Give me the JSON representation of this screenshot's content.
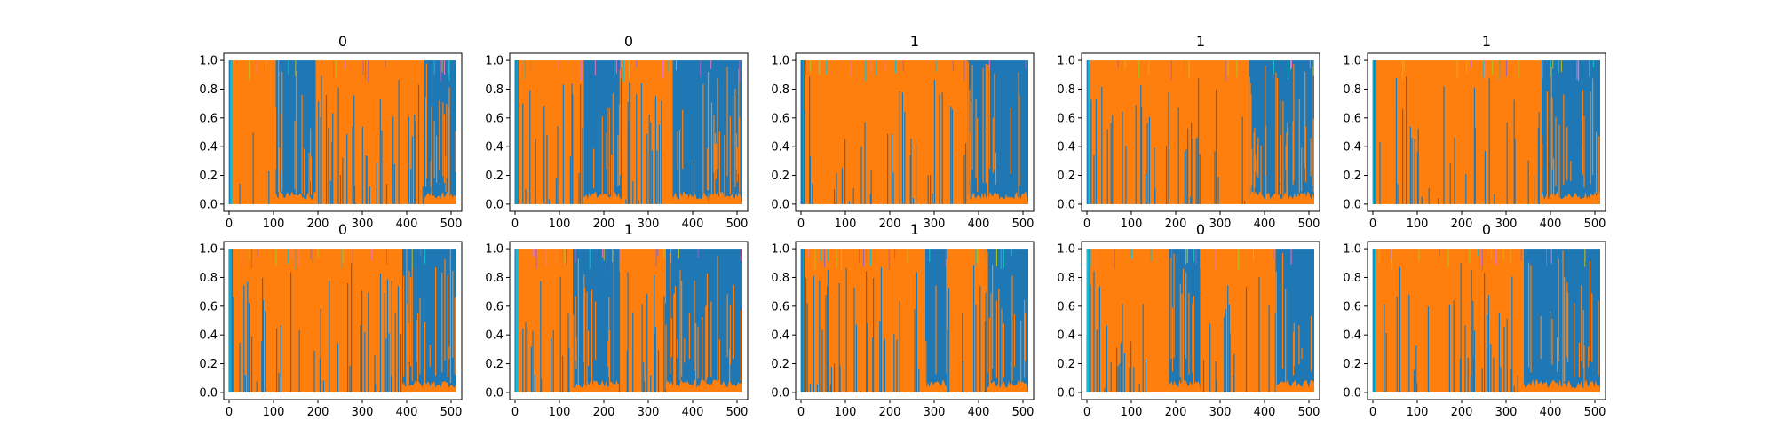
{
  "figure": {
    "background": "#ffffff",
    "layout": "2 rows x 5 columns"
  },
  "chart_data": [
    {
      "type": "area",
      "title": "0",
      "xlim": [
        -12,
        524
      ],
      "ylim": [
        -0.05,
        1.05
      ],
      "xticks": [
        "0",
        "100",
        "200",
        "300",
        "400",
        "500"
      ],
      "yticks": [
        "0.0",
        "0.2",
        "0.4",
        "0.6",
        "0.8",
        "1.0"
      ],
      "series": [
        {
          "color": "#1f77b4",
          "values": [
            0,
            0,
            0,
            0,
            0,
            0,
            0,
            1,
            1,
            1,
            1,
            1,
            0,
            0,
            0,
            0,
            0,
            0,
            0,
            0,
            0,
            0,
            0,
            1,
            1,
            1,
            1,
            1
          ]
        },
        {
          "color": "#ff7f0e",
          "values": [
            1,
            1,
            1,
            1,
            1,
            1,
            1,
            0,
            0,
            0,
            0,
            0,
            1,
            1,
            1,
            1,
            1,
            1,
            1,
            1,
            1,
            1,
            1,
            0,
            0,
            0,
            0,
            0
          ]
        }
      ],
      "segments": [
        [
          0,
          105,
          "o"
        ],
        [
          105,
          195,
          "b"
        ],
        [
          195,
          440,
          "o"
        ],
        [
          440,
          512,
          "b"
        ]
      ]
    },
    {
      "type": "area",
      "title": "0",
      "xlim": [
        -12,
        524
      ],
      "ylim": [
        -0.05,
        1.05
      ],
      "xticks": [
        "0",
        "100",
        "200",
        "300",
        "400",
        "500"
      ],
      "yticks": [
        "0.0",
        "0.2",
        "0.4",
        "0.6",
        "0.8",
        "1.0"
      ],
      "segments": [
        [
          0,
          155,
          "o"
        ],
        [
          155,
          240,
          "b"
        ],
        [
          240,
          355,
          "o"
        ],
        [
          355,
          435,
          "b"
        ],
        [
          435,
          512,
          "b"
        ]
      ]
    },
    {
      "type": "area",
      "title": "1",
      "xlim": [
        -12,
        524
      ],
      "ylim": [
        -0.05,
        1.05
      ],
      "xticks": [
        "0",
        "100",
        "200",
        "300",
        "400",
        "500"
      ],
      "yticks": [
        "0.0",
        "0.2",
        "0.4",
        "0.6",
        "0.8",
        "1.0"
      ],
      "segments": [
        [
          0,
          375,
          "o"
        ],
        [
          375,
          512,
          "b"
        ]
      ]
    },
    {
      "type": "area",
      "title": "1",
      "xlim": [
        -12,
        524
      ],
      "ylim": [
        -0.05,
        1.05
      ],
      "xticks": [
        "0",
        "100",
        "200",
        "300",
        "400",
        "500"
      ],
      "yticks": [
        "0.0",
        "0.2",
        "0.4",
        "0.6",
        "0.8",
        "1.0"
      ],
      "segments": [
        [
          0,
          365,
          "o"
        ],
        [
          365,
          512,
          "b"
        ]
      ]
    },
    {
      "type": "area",
      "title": "1",
      "xlim": [
        -12,
        524
      ],
      "ylim": [
        -0.05,
        1.05
      ],
      "xticks": [
        "0",
        "100",
        "200",
        "300",
        "400",
        "500"
      ],
      "yticks": [
        "0.0",
        "0.2",
        "0.4",
        "0.6",
        "0.8",
        "1.0"
      ],
      "segments": [
        [
          0,
          380,
          "o"
        ],
        [
          380,
          512,
          "b"
        ]
      ]
    },
    {
      "type": "area",
      "title": "0",
      "xlim": [
        -12,
        524
      ],
      "ylim": [
        -0.05,
        1.05
      ],
      "xticks": [
        "0",
        "100",
        "200",
        "300",
        "400",
        "500"
      ],
      "yticks": [
        "0.0",
        "0.2",
        "0.4",
        "0.6",
        "0.8",
        "1.0"
      ],
      "segments": [
        [
          0,
          390,
          "o"
        ],
        [
          390,
          512,
          "b"
        ]
      ]
    },
    {
      "type": "area",
      "title": "1",
      "xlim": [
        -12,
        524
      ],
      "ylim": [
        -0.05,
        1.05
      ],
      "xticks": [
        "0",
        "100",
        "200",
        "300",
        "400",
        "500"
      ],
      "yticks": [
        "0.0",
        "0.2",
        "0.4",
        "0.6",
        "0.8",
        "1.0"
      ],
      "segments": [
        [
          0,
          130,
          "o"
        ],
        [
          130,
          235,
          "b"
        ],
        [
          235,
          340,
          "o"
        ],
        [
          340,
          440,
          "b"
        ],
        [
          440,
          512,
          "b"
        ]
      ]
    },
    {
      "type": "area",
      "title": "1",
      "xlim": [
        -12,
        524
      ],
      "ylim": [
        -0.05,
        1.05
      ],
      "xticks": [
        "0",
        "100",
        "200",
        "300",
        "400",
        "500"
      ],
      "yticks": [
        "0.0",
        "0.2",
        "0.4",
        "0.6",
        "0.8",
        "1.0"
      ],
      "segments": [
        [
          0,
          280,
          "o"
        ],
        [
          280,
          330,
          "b"
        ],
        [
          330,
          420,
          "o"
        ],
        [
          420,
          512,
          "b"
        ]
      ]
    },
    {
      "type": "area",
      "title": "0",
      "xlim": [
        -12,
        524
      ],
      "ylim": [
        -0.05,
        1.05
      ],
      "xticks": [
        "0",
        "100",
        "200",
        "300",
        "400",
        "500"
      ],
      "yticks": [
        "0.0",
        "0.2",
        "0.4",
        "0.6",
        "0.8",
        "1.0"
      ],
      "segments": [
        [
          0,
          185,
          "o"
        ],
        [
          185,
          255,
          "b"
        ],
        [
          255,
          425,
          "o"
        ],
        [
          425,
          512,
          "b"
        ]
      ]
    },
    {
      "type": "area",
      "title": "0",
      "xlim": [
        -12,
        524
      ],
      "ylim": [
        -0.05,
        1.05
      ],
      "xticks": [
        "0",
        "100",
        "200",
        "300",
        "400",
        "500"
      ],
      "yticks": [
        "0.0",
        "0.2",
        "0.4",
        "0.6",
        "0.8",
        "1.0"
      ],
      "segments": [
        [
          0,
          340,
          "o"
        ],
        [
          340,
          512,
          "b"
        ]
      ]
    }
  ],
  "colors": {
    "series_a": "#1f77b4",
    "series_b": "#ff7f0e",
    "accent_1": "#17becf",
    "accent_2": "#bcbd22",
    "accent_3": "#e377c2",
    "accent_4": "#9467bd"
  }
}
